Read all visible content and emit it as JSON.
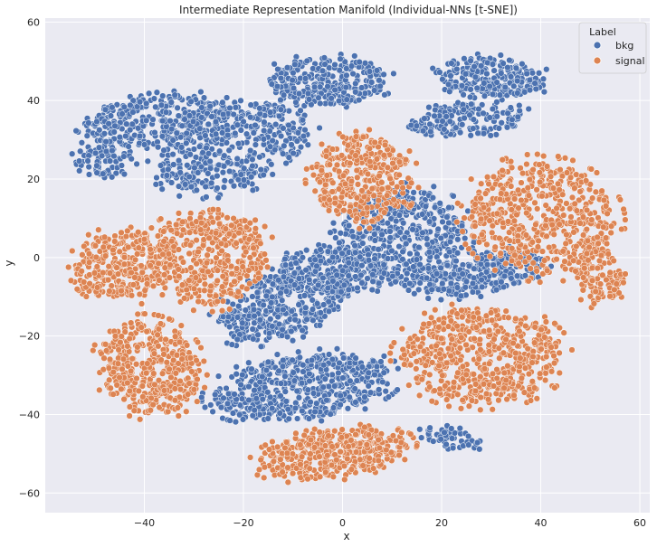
{
  "chart_data": {
    "type": "scatter",
    "title": "Intermediate Representation Manifold (Individual-NNs [t-SNE])",
    "xlabel": "x",
    "ylabel": "y",
    "xlim": [
      -60,
      62
    ],
    "ylim": [
      -65,
      61
    ],
    "xticks": [
      -40,
      -20,
      0,
      20,
      40,
      60
    ],
    "yticks": [
      -60,
      -40,
      -20,
      0,
      20,
      40,
      60
    ],
    "grid": true,
    "background": "#eaeaf2",
    "legend": {
      "title": "Label",
      "placement": "top-right",
      "entries": [
        "bkg",
        "signal"
      ]
    },
    "series": [
      {
        "name": "bkg",
        "color": "#4c72b0",
        "clusters": [
          {
            "cx": -38,
            "cy": 35,
            "rx": 15,
            "ry": 6,
            "angle": 10,
            "n": 300
          },
          {
            "cx": -48,
            "cy": 25,
            "rx": 6,
            "ry": 4,
            "angle": 0,
            "n": 80
          },
          {
            "cx": -22,
            "cy": 28,
            "rx": 16,
            "ry": 10,
            "angle": 25,
            "n": 450
          },
          {
            "cx": -3,
            "cy": 45,
            "rx": 12,
            "ry": 6,
            "angle": 0,
            "n": 280
          },
          {
            "cx": 30,
            "cy": 46,
            "rx": 11,
            "ry": 5,
            "angle": -5,
            "n": 240
          },
          {
            "cx": 25,
            "cy": 35,
            "rx": 12,
            "ry": 4,
            "angle": 5,
            "n": 160
          },
          {
            "cx": 12,
            "cy": 5,
            "rx": 13,
            "ry": 12,
            "angle": 30,
            "n": 500
          },
          {
            "cx": 28,
            "cy": -4,
            "rx": 13,
            "ry": 5,
            "angle": 15,
            "n": 260
          },
          {
            "cx": -12,
            "cy": -12,
            "rx": 14,
            "ry": 8,
            "angle": 25,
            "n": 420
          },
          {
            "cx": -3,
            "cy": -3,
            "rx": 10,
            "ry": 6,
            "angle": 0,
            "n": 200
          },
          {
            "cx": -8,
            "cy": -33,
            "rx": 18,
            "ry": 8,
            "angle": 10,
            "n": 560
          },
          {
            "cx": 22,
            "cy": -46,
            "rx": 6,
            "ry": 2.5,
            "angle": -15,
            "n": 50
          }
        ]
      },
      {
        "name": "signal",
        "color": "#dd8452",
        "clusters": [
          {
            "cx": 4,
            "cy": 20,
            "rx": 10,
            "ry": 11,
            "angle": 0,
            "n": 350
          },
          {
            "cx": -44,
            "cy": -2,
            "rx": 10,
            "ry": 9,
            "angle": 10,
            "n": 320
          },
          {
            "cx": -27,
            "cy": 0,
            "rx": 12,
            "ry": 12,
            "angle": 0,
            "n": 450
          },
          {
            "cx": 40,
            "cy": 10,
            "rx": 15,
            "ry": 14,
            "angle": -25,
            "n": 550
          },
          {
            "cx": 52,
            "cy": -4,
            "rx": 5,
            "ry": 8,
            "angle": 0,
            "n": 120
          },
          {
            "cx": 28,
            "cy": -25,
            "rx": 16,
            "ry": 12,
            "angle": 0,
            "n": 600
          },
          {
            "cx": -39,
            "cy": -28,
            "rx": 10,
            "ry": 12,
            "angle": 15,
            "n": 420
          },
          {
            "cx": -2,
            "cy": -50,
            "rx": 15,
            "ry": 6,
            "angle": 10,
            "n": 420
          }
        ]
      }
    ]
  }
}
